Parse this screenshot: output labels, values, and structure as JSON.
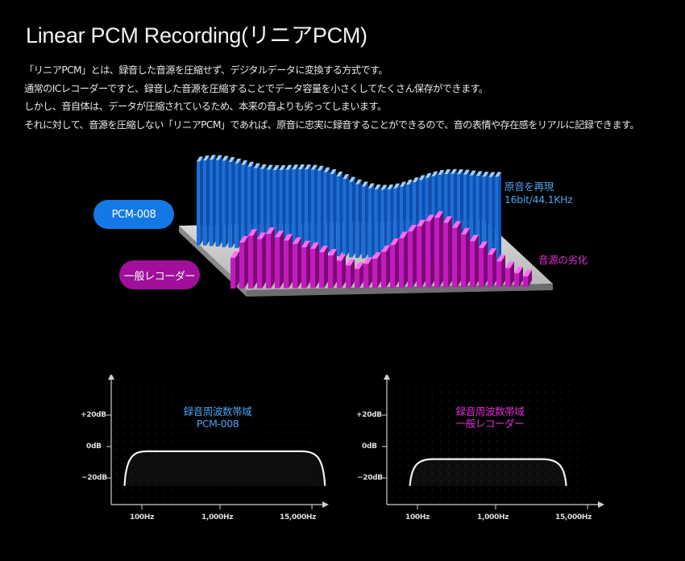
{
  "title": "Linear PCM Recording(リニアPCM)",
  "description": [
    "「リニアPCM」とは、録音した音源を圧縮せず、デジタルデータに変換する方式です。",
    "通常のICレコーダーですと、録音した音源を圧縮することでデータ容量を小さくしてたくさん保存ができます。",
    "しかし、音自体は、データが圧縮されているため、本来の音よりも劣ってしまいます。",
    "それに対して、音源を圧縮しない「リニアPCM」であれば、原音に忠実に録音することができるので、音の表情や存在感をリアルに記録できます。"
  ],
  "illustration": {
    "pcm_label": "PCM-008",
    "ic_label": "一般レコーダー",
    "original_label_line1": "原音を再現",
    "original_label_line2": "16bit/44.1KHz",
    "degraded_label": "音源の劣化",
    "colors": {
      "blue": "#1479e6",
      "magenta": "#a0109a",
      "light_blue": "#4fa3f0",
      "pink": "#e02fd6"
    }
  },
  "charts": [
    {
      "title_line1": "録音周波数帯域",
      "title_line2": "PCM-008",
      "title_color": "#4fa3f0",
      "y_ticks": [
        "+20dB",
        "0dB",
        "−20dB"
      ],
      "x_ticks": [
        "100Hz",
        "1,000Hz",
        "15,000Hz"
      ],
      "response": {
        "low_cut_hz": 60,
        "high_cut_hz": 22000,
        "level_db": -3
      }
    },
    {
      "title_line1": "録音周波数帯域",
      "title_line2": "一般レコーダー",
      "title_color": "#e02fd6",
      "y_ticks": [
        "+20dB",
        "0dB",
        "−20dB"
      ],
      "x_ticks": [
        "100Hz",
        "1,000Hz",
        "15,000Hz"
      ],
      "response": {
        "low_cut_hz": 80,
        "high_cut_hz": 8000,
        "level_db": -8
      }
    }
  ]
}
